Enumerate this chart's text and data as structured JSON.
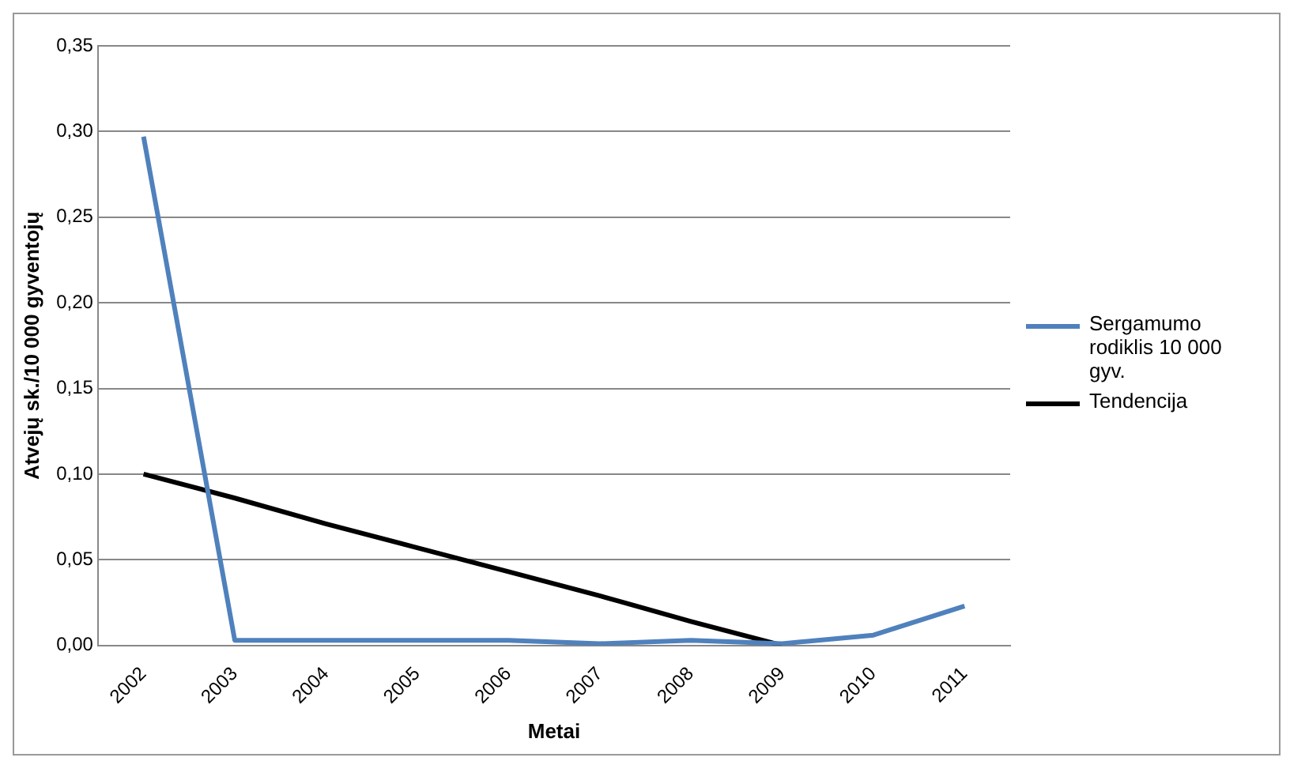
{
  "chart_data": {
    "type": "line",
    "xlabel": "Metai",
    "ylabel": "Atvejų sk./10 000 gyventojų",
    "categories": [
      "2002",
      "2003",
      "2004",
      "2005",
      "2006",
      "2007",
      "2008",
      "2009",
      "2010",
      "2011"
    ],
    "series": [
      {
        "name": "Sergamumo rodiklis 10 000 gyv.",
        "color": "#4f81bd",
        "values": [
          0.297,
          0.003,
          0.003,
          0.003,
          0.003,
          0.001,
          0.003,
          0.001,
          0.006,
          0.023
        ]
      },
      {
        "name": "Tendencija",
        "color": "#000000",
        "values": [
          0.1,
          0.086,
          0.071,
          0.057,
          0.043,
          0.029,
          0.014,
          0.0,
          null,
          null
        ]
      }
    ],
    "ylim": [
      0,
      0.35
    ],
    "yticks": [
      {
        "value": 0,
        "label": "0,00"
      },
      {
        "value": 0.05,
        "label": "0,05"
      },
      {
        "value": 0.1,
        "label": "0,10"
      },
      {
        "value": 0.15,
        "label": "0,15"
      },
      {
        "value": 0.2,
        "label": "0,20"
      },
      {
        "value": 0.25,
        "label": "0,25"
      },
      {
        "value": 0.3,
        "label": "0,30"
      },
      {
        "value": 0.35,
        "label": "0,35"
      }
    ],
    "grid": "y",
    "legend": "right",
    "marker": "none",
    "line_style": "solid"
  }
}
